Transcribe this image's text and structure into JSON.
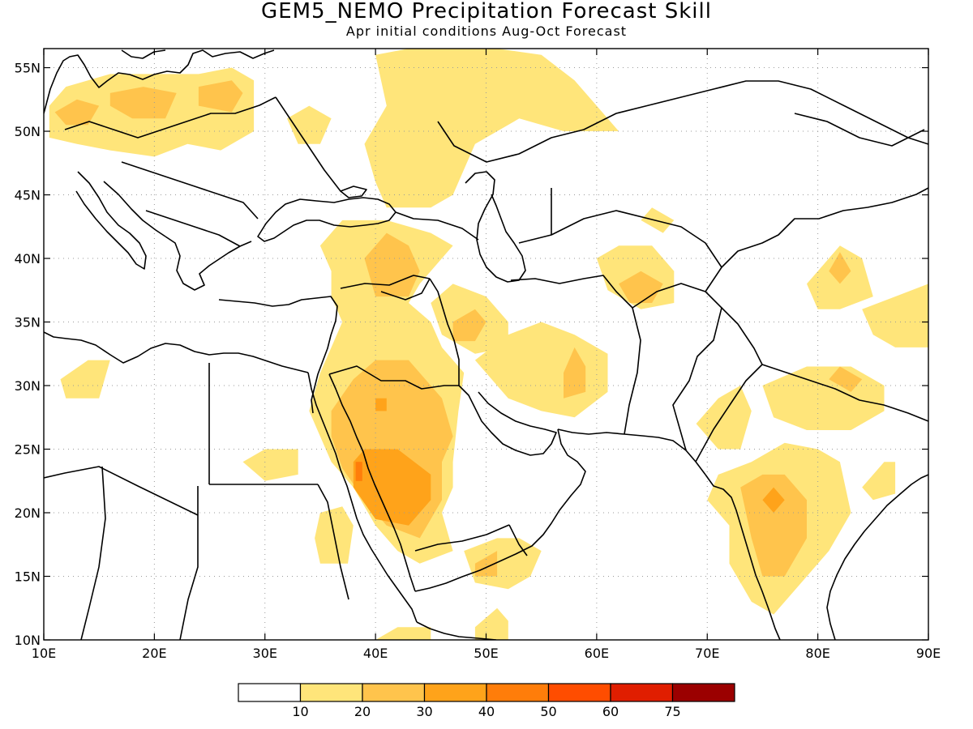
{
  "title": "GEM5_NEMO Precipitation Forecast Skill",
  "subtitle": "Apr initial conditions  Aug-Oct Forecast",
  "map": {
    "lon_range": [
      10,
      90
    ],
    "lat_range": [
      10,
      56.5
    ],
    "x_ticks": [
      {
        "lon": 10,
        "label": "10E"
      },
      {
        "lon": 20,
        "label": "20E"
      },
      {
        "lon": 30,
        "label": "30E"
      },
      {
        "lon": 40,
        "label": "40E"
      },
      {
        "lon": 50,
        "label": "50E"
      },
      {
        "lon": 60,
        "label": "60E"
      },
      {
        "lon": 70,
        "label": "70E"
      },
      {
        "lon": 80,
        "label": "80E"
      },
      {
        "lon": 90,
        "label": "90E"
      }
    ],
    "y_ticks": [
      {
        "lat": 10,
        "label": "10N"
      },
      {
        "lat": 15,
        "label": "15N"
      },
      {
        "lat": 20,
        "label": "20N"
      },
      {
        "lat": 25,
        "label": "25N"
      },
      {
        "lat": 30,
        "label": "30N"
      },
      {
        "lat": 35,
        "label": "35N"
      },
      {
        "lat": 40,
        "label": "40N"
      },
      {
        "lat": 45,
        "label": "45N"
      },
      {
        "lat": 50,
        "label": "50N"
      },
      {
        "lat": 55,
        "label": "55N"
      }
    ],
    "grid": "dotted"
  },
  "colorbar": {
    "colors": [
      "#ffffff",
      "#ffe57a",
      "#ffc44c",
      "#ffa31a",
      "#ff7d0a",
      "#ff4d00",
      "#e01e00",
      "#9b0000"
    ],
    "labels": [
      "10",
      "20",
      "30",
      "40",
      "50",
      "60",
      "75"
    ]
  },
  "skill_regions": [
    {
      "level": 1,
      "lonlat": [
        [
          10.5,
          52
        ],
        [
          12,
          53.5
        ],
        [
          16,
          54.5
        ],
        [
          19,
          54.5
        ],
        [
          24,
          54.5
        ],
        [
          27,
          55
        ],
        [
          29,
          54
        ],
        [
          29,
          50
        ],
        [
          26,
          48.5
        ],
        [
          23,
          49
        ],
        [
          20,
          48
        ],
        [
          16,
          48.5
        ],
        [
          13,
          49
        ],
        [
          10.5,
          49.5
        ]
      ]
    },
    {
      "level": 1,
      "lonlat": [
        [
          40,
          56
        ],
        [
          43,
          56.5
        ],
        [
          51,
          56.5
        ],
        [
          55,
          56
        ],
        [
          58,
          54
        ],
        [
          60,
          52
        ],
        [
          62,
          50
        ],
        [
          57,
          50
        ],
        [
          53,
          51
        ],
        [
          49,
          49
        ],
        [
          47,
          45
        ],
        [
          45,
          44
        ],
        [
          41,
          44
        ],
        [
          40,
          46
        ],
        [
          39,
          49
        ],
        [
          41,
          52
        ]
      ]
    },
    {
      "level": 1,
      "lonlat": [
        [
          32,
          51
        ],
        [
          34,
          52
        ],
        [
          36,
          51
        ],
        [
          35,
          49
        ],
        [
          33,
          49
        ]
      ]
    },
    {
      "level": 1,
      "lonlat": [
        [
          11.5,
          30.5
        ],
        [
          14,
          32
        ],
        [
          16,
          32
        ],
        [
          15,
          29
        ],
        [
          12,
          29
        ]
      ]
    },
    {
      "level": 1,
      "lonlat": [
        [
          35,
          41
        ],
        [
          37,
          43
        ],
        [
          41,
          43
        ],
        [
          45,
          42
        ],
        [
          47,
          41
        ],
        [
          44,
          38
        ],
        [
          43,
          36.5
        ],
        [
          45,
          35
        ],
        [
          46,
          33
        ],
        [
          48,
          31
        ],
        [
          47.5,
          28
        ],
        [
          47,
          24
        ],
        [
          47,
          22
        ],
        [
          46,
          20
        ],
        [
          47,
          17
        ],
        [
          44,
          16
        ],
        [
          42,
          17
        ],
        [
          40,
          19
        ],
        [
          38,
          22
        ],
        [
          36,
          24
        ],
        [
          35,
          26
        ],
        [
          34,
          28
        ],
        [
          35,
          31
        ],
        [
          36,
          33
        ],
        [
          37,
          35
        ],
        [
          36,
          37
        ],
        [
          36,
          39
        ]
      ]
    },
    {
      "level": 1,
      "lonlat": [
        [
          45,
          36.5
        ],
        [
          47,
          38
        ],
        [
          50,
          37
        ],
        [
          52,
          35
        ],
        [
          52,
          33
        ],
        [
          49,
          32.5
        ],
        [
          46,
          34
        ]
      ]
    },
    {
      "level": 1,
      "lonlat": [
        [
          48,
          17
        ],
        [
          51,
          18
        ],
        [
          53,
          18
        ],
        [
          55,
          17
        ],
        [
          54,
          15
        ],
        [
          52,
          14
        ],
        [
          49,
          14.5
        ]
      ]
    },
    {
      "level": 1,
      "lonlat": [
        [
          35,
          20
        ],
        [
          37,
          20.5
        ],
        [
          38,
          19
        ],
        [
          37.5,
          16
        ],
        [
          35,
          16
        ],
        [
          34.5,
          18
        ]
      ]
    },
    {
      "level": 1,
      "lonlat": [
        [
          49,
          32
        ],
        [
          52,
          34
        ],
        [
          55,
          35
        ],
        [
          58,
          34
        ],
        [
          61,
          32.5
        ],
        [
          61,
          29.5
        ],
        [
          58,
          27.5
        ],
        [
          55,
          28
        ],
        [
          52,
          29
        ]
      ]
    },
    {
      "level": 1,
      "lonlat": [
        [
          60,
          40
        ],
        [
          62,
          41
        ],
        [
          65,
          41
        ],
        [
          67,
          39
        ],
        [
          67,
          36.5
        ],
        [
          64,
          36
        ],
        [
          61,
          37.5
        ]
      ]
    },
    {
      "level": 1,
      "lonlat": [
        [
          64,
          43
        ],
        [
          65,
          44
        ],
        [
          67,
          43
        ],
        [
          66,
          42
        ]
      ]
    },
    {
      "level": 1,
      "lonlat": [
        [
          79,
          38
        ],
        [
          82,
          41
        ],
        [
          84,
          40
        ],
        [
          85,
          37
        ],
        [
          82,
          36
        ],
        [
          80,
          36
        ]
      ]
    },
    {
      "level": 1,
      "lonlat": [
        [
          84,
          36
        ],
        [
          87,
          37
        ],
        [
          90,
          38
        ],
        [
          90,
          33
        ],
        [
          87,
          33
        ],
        [
          85,
          34
        ]
      ]
    },
    {
      "level": 1,
      "lonlat": [
        [
          69,
          27
        ],
        [
          71,
          29
        ],
        [
          73,
          30
        ],
        [
          74,
          28
        ],
        [
          73,
          25
        ],
        [
          71,
          25
        ]
      ]
    },
    {
      "level": 1,
      "lonlat": [
        [
          75,
          30
        ],
        [
          79,
          31.5
        ],
        [
          83,
          31.5
        ],
        [
          86,
          30
        ],
        [
          86,
          28
        ],
        [
          83,
          26.5
        ],
        [
          79,
          26.5
        ],
        [
          76,
          27.5
        ]
      ]
    },
    {
      "level": 1,
      "lonlat": [
        [
          70,
          21
        ],
        [
          71,
          23
        ],
        [
          74,
          24
        ],
        [
          77,
          25.5
        ],
        [
          80,
          25
        ],
        [
          82,
          24
        ],
        [
          83,
          20
        ],
        [
          81,
          17
        ],
        [
          78,
          14
        ],
        [
          76,
          12
        ],
        [
          74,
          13
        ],
        [
          72,
          16
        ],
        [
          72,
          19
        ]
      ]
    },
    {
      "level": 1,
      "lonlat": [
        [
          84,
          22
        ],
        [
          86,
          24
        ],
        [
          87,
          24
        ],
        [
          87,
          21.5
        ],
        [
          85,
          21
        ]
      ]
    },
    {
      "level": 1,
      "lonlat": [
        [
          28,
          24
        ],
        [
          30,
          25
        ],
        [
          33,
          25
        ],
        [
          33,
          23
        ],
        [
          30,
          22.5
        ]
      ]
    },
    {
      "level": 1,
      "lonlat": [
        [
          49,
          11
        ],
        [
          51,
          12.5
        ],
        [
          52,
          11.5
        ],
        [
          52,
          10
        ],
        [
          49,
          10
        ]
      ]
    },
    {
      "level": 1,
      "lonlat": [
        [
          40,
          10
        ],
        [
          42,
          11
        ],
        [
          45,
          11
        ],
        [
          45,
          10
        ]
      ]
    },
    {
      "level": 2,
      "lonlat": [
        [
          11,
          51.5
        ],
        [
          13,
          52.5
        ],
        [
          15,
          52
        ],
        [
          14,
          50.5
        ],
        [
          12,
          50.5
        ]
      ]
    },
    {
      "level": 2,
      "lonlat": [
        [
          16,
          53
        ],
        [
          19,
          53.5
        ],
        [
          22,
          53
        ],
        [
          21,
          51
        ],
        [
          18,
          51
        ],
        [
          16,
          52
        ]
      ]
    },
    {
      "level": 2,
      "lonlat": [
        [
          24,
          53.5
        ],
        [
          27,
          54
        ],
        [
          28,
          53
        ],
        [
          27,
          51.5
        ],
        [
          24,
          52
        ]
      ]
    },
    {
      "level": 2,
      "lonlat": [
        [
          38,
          30.5
        ],
        [
          40,
          32
        ],
        [
          43,
          32
        ],
        [
          46,
          29
        ],
        [
          47,
          26
        ],
        [
          46,
          24
        ],
        [
          46,
          21
        ],
        [
          44,
          18
        ],
        [
          41,
          19
        ],
        [
          39,
          21
        ],
        [
          37,
          23.5
        ],
        [
          36,
          26
        ],
        [
          36,
          28
        ]
      ]
    },
    {
      "level": 2,
      "lonlat": [
        [
          39,
          40
        ],
        [
          41,
          42
        ],
        [
          43,
          41
        ],
        [
          44,
          39
        ],
        [
          43,
          37
        ],
        [
          40,
          37
        ]
      ]
    },
    {
      "level": 2,
      "lonlat": [
        [
          47,
          35
        ],
        [
          49,
          36
        ],
        [
          50,
          35
        ],
        [
          49,
          33.5
        ],
        [
          47,
          33.5
        ]
      ]
    },
    {
      "level": 2,
      "lonlat": [
        [
          57,
          31
        ],
        [
          58,
          33
        ],
        [
          59,
          31.5
        ],
        [
          59,
          29.5
        ],
        [
          57,
          29
        ]
      ]
    },
    {
      "level": 2,
      "lonlat": [
        [
          62,
          38
        ],
        [
          64,
          39
        ],
        [
          66,
          38
        ],
        [
          65,
          36.5
        ],
        [
          63,
          36.5
        ]
      ]
    },
    {
      "level": 2,
      "lonlat": [
        [
          49,
          16
        ],
        [
          51,
          17
        ],
        [
          51,
          15
        ],
        [
          49,
          15
        ]
      ]
    },
    {
      "level": 2,
      "lonlat": [
        [
          73,
          22
        ],
        [
          75,
          23
        ],
        [
          77,
          23
        ],
        [
          79,
          21
        ],
        [
          79,
          18
        ],
        [
          77,
          15
        ],
        [
          75,
          15
        ],
        [
          74,
          18
        ]
      ]
    },
    {
      "level": 2,
      "lonlat": [
        [
          81,
          39
        ],
        [
          82,
          40.5
        ],
        [
          83,
          39
        ],
        [
          82,
          38
        ]
      ]
    },
    {
      "level": 2,
      "lonlat": [
        [
          81,
          30.5
        ],
        [
          82,
          31.5
        ],
        [
          84,
          30.5
        ],
        [
          83,
          29.5
        ]
      ]
    },
    {
      "level": 3,
      "lonlat": [
        [
          38,
          24
        ],
        [
          39,
          25
        ],
        [
          42,
          25
        ],
        [
          45,
          23
        ],
        [
          45,
          21
        ],
        [
          43,
          19
        ],
        [
          40,
          19.5
        ],
        [
          38,
          22
        ]
      ]
    },
    {
      "level": 3,
      "lonlat": [
        [
          40,
          28
        ],
        [
          40,
          29
        ],
        [
          41,
          29
        ],
        [
          41,
          28
        ]
      ]
    },
    {
      "level": 3,
      "lonlat": [
        [
          75,
          21
        ],
        [
          76,
          22
        ],
        [
          77,
          21
        ],
        [
          76,
          20
        ]
      ]
    },
    {
      "level": 4,
      "lonlat": [
        [
          38.2,
          22.5
        ],
        [
          38.2,
          24
        ],
        [
          38.8,
          24
        ],
        [
          38.8,
          22.5
        ]
      ]
    }
  ]
}
